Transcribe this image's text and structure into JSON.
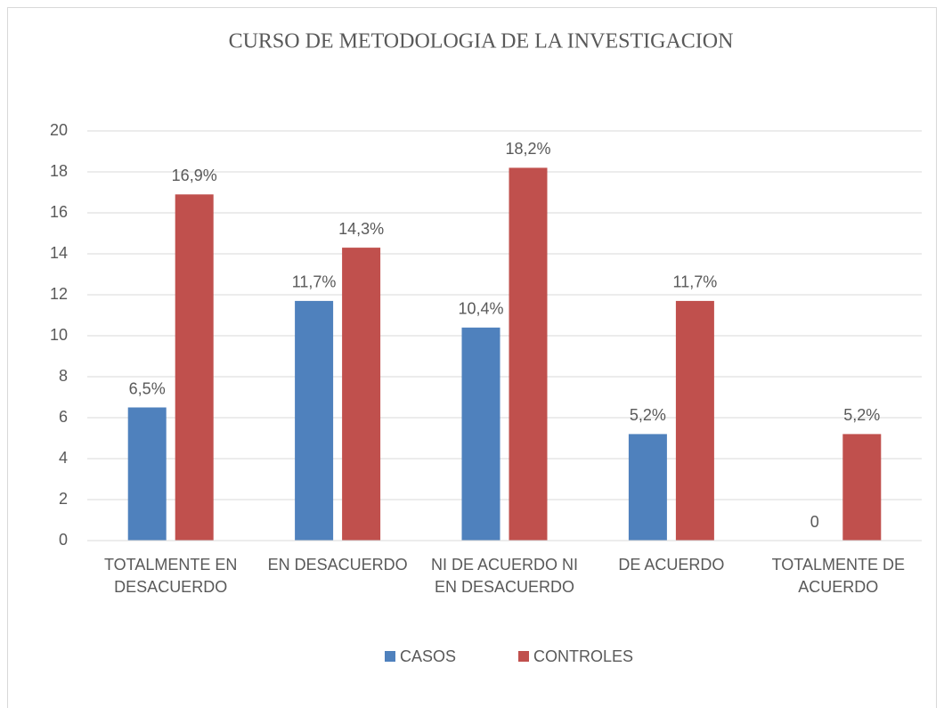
{
  "chart_data": {
    "type": "bar",
    "title": "CURSO DE METODOLOGIA DE LA INVESTIGACION",
    "categories": [
      "TOTALMENTE EN DESACUERDO",
      "EN DESACUERDO",
      "NI DE ACUERDO NI EN DESACUERDO",
      "DE ACUERDO",
      "TOTALMENTE DE ACUERDO"
    ],
    "series": [
      {
        "name": "CASOS",
        "color": "#4f81bd",
        "values": [
          6.5,
          11.7,
          10.4,
          5.2,
          0
        ],
        "value_labels": [
          "6,5%",
          "11,7%",
          "10,4%",
          "5,2%",
          "0"
        ]
      },
      {
        "name": "CONTROLES",
        "color": "#c0504d",
        "values": [
          16.9,
          14.3,
          18.2,
          11.7,
          5.2
        ],
        "value_labels": [
          "16,9%",
          "14,3%",
          "18,2%",
          "11,7%",
          "5,2%"
        ]
      }
    ],
    "ylim": [
      0,
      20
    ],
    "yticks": [
      0,
      2,
      4,
      6,
      8,
      10,
      12,
      14,
      16,
      18,
      20
    ],
    "grid": true,
    "legend": "bottom"
  }
}
